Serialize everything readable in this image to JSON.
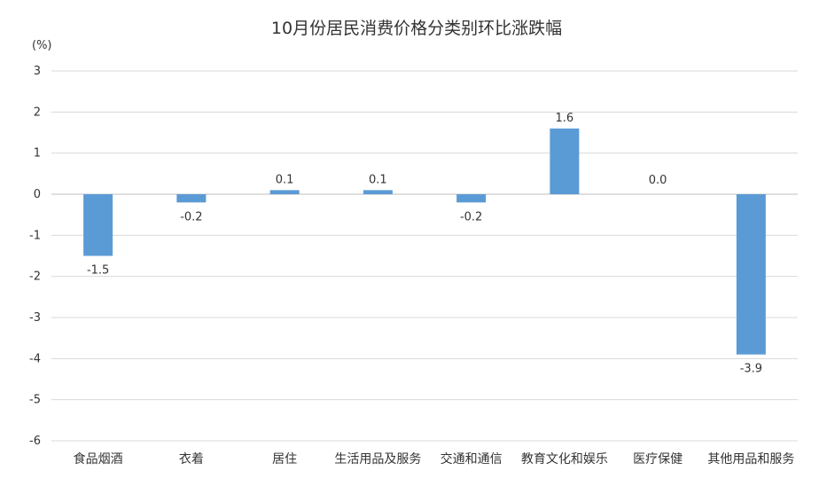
{
  "chart_data": {
    "type": "bar",
    "title": "10月份居民消费价格分类别环比涨跌幅",
    "ylabel": "(%)",
    "xlabel": "",
    "categories": [
      "食品烟酒",
      "衣着",
      "居住",
      "生活用品及服务",
      "交通和通信",
      "教育文化和娱乐",
      "医疗保健",
      "其他用品和服务"
    ],
    "values": [
      -1.5,
      -0.2,
      0.1,
      0.1,
      -0.2,
      1.6,
      0.0,
      -3.9
    ],
    "value_labels": [
      "-1.5",
      "-0.2",
      "0.1",
      "0.1",
      "-0.2",
      "1.6",
      "0.0",
      "-3.9"
    ],
    "ylim": [
      -6,
      3
    ],
    "yticks": [
      3,
      2,
      1,
      0,
      -1,
      -2,
      -3,
      -4,
      -5,
      -6
    ],
    "grid": true,
    "bar_color": "#5b9bd5",
    "grid_color": "#d9d9d9"
  }
}
